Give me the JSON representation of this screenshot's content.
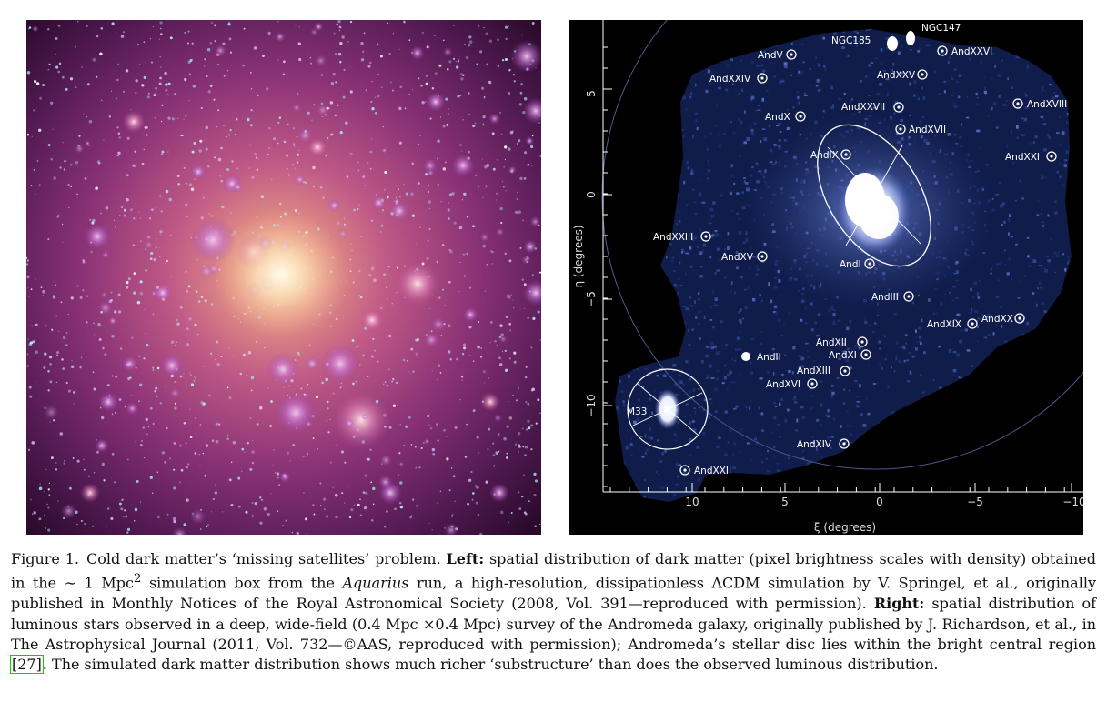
{
  "left_panel": {
    "alt": "Dark matter simulation from the Aquarius run"
  },
  "right_panel": {
    "x_axis": {
      "label": "ξ (degrees)",
      "ticks": [
        "10",
        "5",
        "0",
        "−5",
        "−10"
      ]
    },
    "y_axis": {
      "label": "η (degrees)",
      "ticks": [
        "5",
        "0",
        "−5",
        "−10"
      ]
    },
    "satellites": [
      {
        "label": "NGC147"
      },
      {
        "label": "NGC185"
      },
      {
        "label": "AndV"
      },
      {
        "label": "AndXXVI"
      },
      {
        "label": "AndXXIV"
      },
      {
        "label": "AndXXV"
      },
      {
        "label": "AndXXVII"
      },
      {
        "label": "AndXVIII"
      },
      {
        "label": "AndX"
      },
      {
        "label": "AndXVII"
      },
      {
        "label": "AndIX"
      },
      {
        "label": "AndXXI"
      },
      {
        "label": "AndXXIII"
      },
      {
        "label": "AndXV"
      },
      {
        "label": "AndI"
      },
      {
        "label": "AndIII"
      },
      {
        "label": "AndXIX"
      },
      {
        "label": "AndXX"
      },
      {
        "label": "AndXII"
      },
      {
        "label": "AndXI"
      },
      {
        "label": "AndII"
      },
      {
        "label": "AndXIII"
      },
      {
        "label": "AndXVI"
      },
      {
        "label": "M33"
      },
      {
        "label": "AndXIV"
      },
      {
        "label": "AndXXII"
      }
    ]
  },
  "caption": {
    "figure_label": "Figure 1.",
    "title": "Cold dark matter’s ‘missing satellites’ problem.",
    "left_label": "Left:",
    "left_text_1": "spatial distribution of dark matter (pixel brightness scales with density) obtained in the ∼ 1 Mpc",
    "left_superscript": "2",
    "left_text_2": "simulation box from the",
    "run_name": "Aquarius",
    "left_text_3": "run, a high-resolution, dissipationless ΛCDM simulation by V. Springel, et al., originally published in Monthly Notices of the Royal Astronomical Society (2008, Vol. 391—reproduced with permission).",
    "right_label": "Right:",
    "right_text": "spatial distribution of luminous stars observed in a deep, wide-field (0.4 Mpc ×0.4 Mpc) survey of the Andromeda galaxy, originally published by J. Richardson, et al., in The Astrophysical Journal (2011, Vol. 732—©AAS, reproduced with permission); Andromeda’s stellar disc lies within the bright central region",
    "reference": "[27]",
    "closing": ". The simulated dark matter distribution shows much richer ‘substructure’ than does the observed luminous distribution."
  }
}
